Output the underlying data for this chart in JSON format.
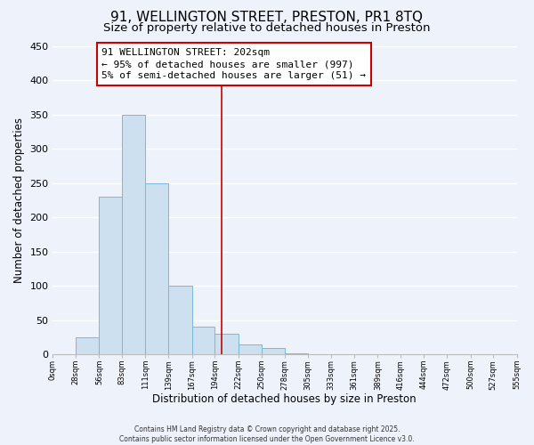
{
  "title": "91, WELLINGTON STREET, PRESTON, PR1 8TQ",
  "subtitle": "Size of property relative to detached houses in Preston",
  "xlabel": "Distribution of detached houses by size in Preston",
  "ylabel": "Number of detached properties",
  "bar_color": "#cce0f0",
  "bar_edge_color": "#7ab8d8",
  "bin_edges": [
    0,
    28,
    56,
    83,
    111,
    139,
    167,
    194,
    222,
    250,
    278,
    305,
    333,
    361,
    389,
    416,
    444,
    472,
    500,
    527,
    555
  ],
  "bar_heights": [
    0,
    25,
    230,
    350,
    250,
    100,
    40,
    30,
    15,
    10,
    2,
    0,
    0,
    0,
    0,
    0,
    0,
    0,
    0,
    0
  ],
  "tick_labels": [
    "0sqm",
    "28sqm",
    "56sqm",
    "83sqm",
    "111sqm",
    "139sqm",
    "167sqm",
    "194sqm",
    "222sqm",
    "250sqm",
    "278sqm",
    "305sqm",
    "333sqm",
    "361sqm",
    "389sqm",
    "416sqm",
    "444sqm",
    "472sqm",
    "500sqm",
    "527sqm",
    "555sqm"
  ],
  "property_size": 202,
  "vline_color": "#cc0000",
  "annotation_title": "91 WELLINGTON STREET: 202sqm",
  "annotation_line1": "← 95% of detached houses are smaller (997)",
  "annotation_line2": "5% of semi-detached houses are larger (51) →",
  "annotation_box_color": "#ffffff",
  "annotation_box_edge": "#cc0000",
  "ylim": [
    0,
    450
  ],
  "yticks": [
    0,
    50,
    100,
    150,
    200,
    250,
    300,
    350,
    400,
    450
  ],
  "copyright_text": "Contains HM Land Registry data © Crown copyright and database right 2025.\nContains public sector information licensed under the Open Government Licence v3.0.",
  "background_color": "#eef2fb",
  "grid_color": "#ffffff",
  "title_fontsize": 11,
  "subtitle_fontsize": 9.5,
  "label_fontsize": 8.5,
  "annotation_fontsize": 8
}
